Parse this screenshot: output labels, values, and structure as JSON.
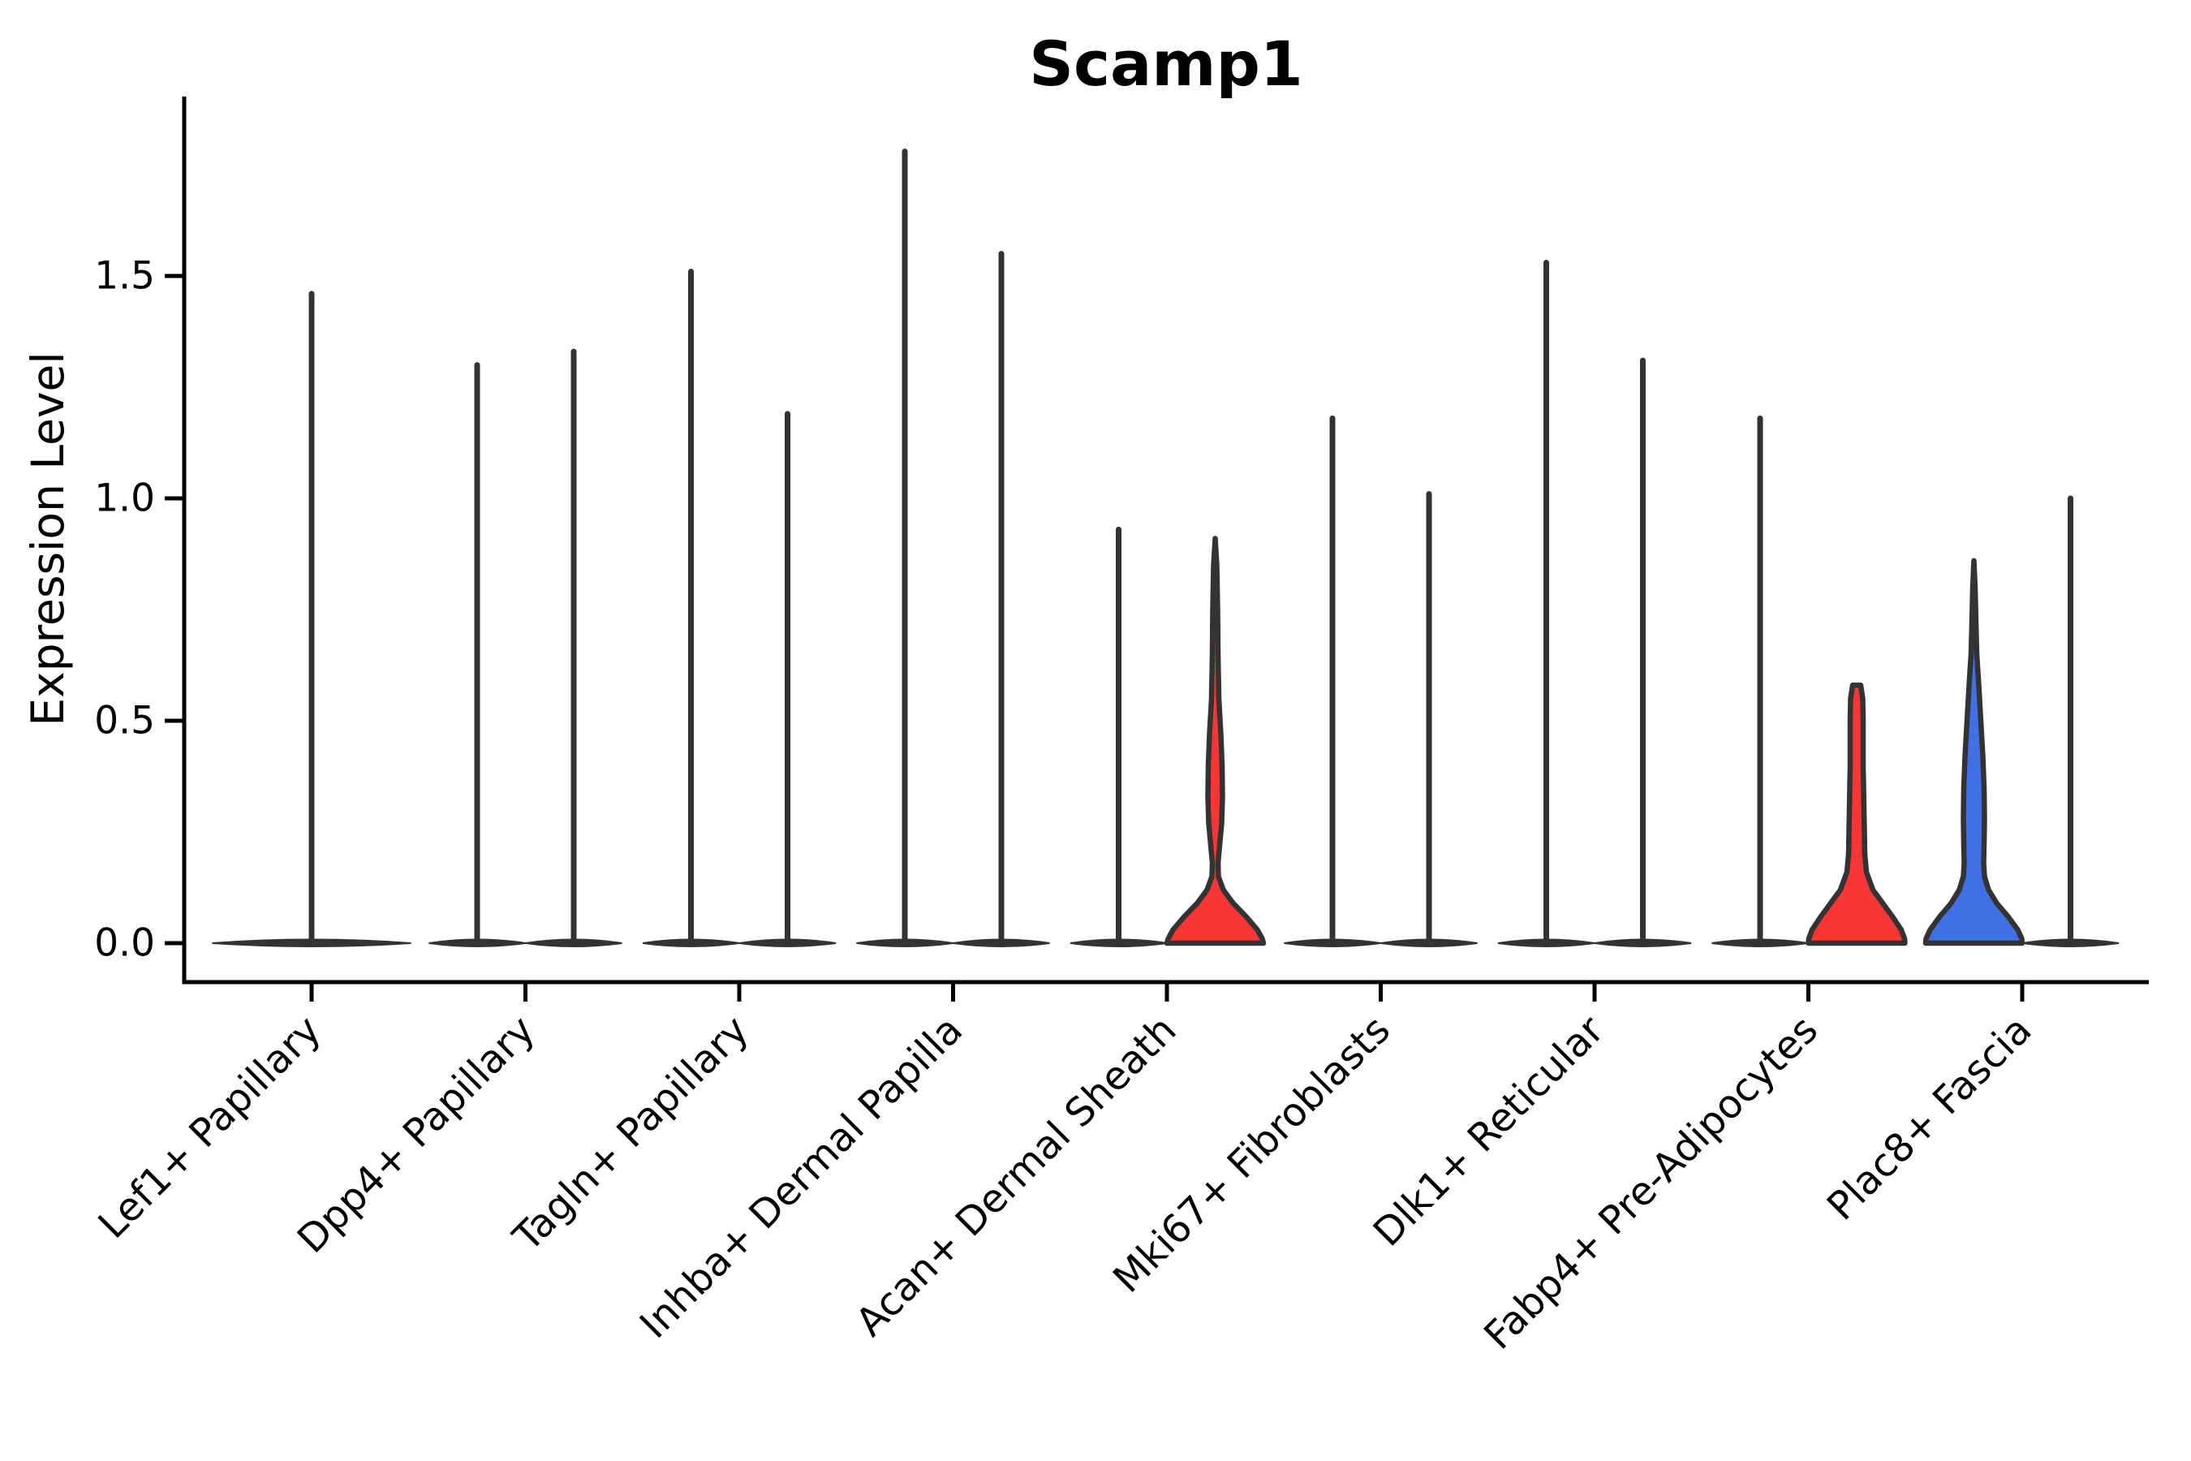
{
  "title": "Scamp1",
  "chart_data": {
    "type": "violin",
    "title": "Scamp1",
    "xlabel": "",
    "ylabel": "Expression Level",
    "ylim": [
      0,
      1.9
    ],
    "yticks": [
      {
        "value": 0.0,
        "label": "0.0"
      },
      {
        "value": 0.5,
        "label": "0.5"
      },
      {
        "value": 1.0,
        "label": "1.0"
      },
      {
        "value": 1.5,
        "label": "1.5"
      }
    ],
    "grid": false,
    "legend": "none",
    "colors": {
      "red_fill": "#f93636",
      "blue_fill": "#4170e4",
      "violin_outline": "#333333",
      "axis": "#000000"
    },
    "note": "Split violin plot, 2 groups per cell type; most violins collapse to a spike at 0 (zero-inflated expression). 'max' is the top of each violin in expression units.",
    "categories": [
      {
        "label": "Lef1+ Papillary",
        "violins": [
          {
            "position": "center",
            "style": "spike",
            "color": "gray",
            "max": 1.46
          }
        ]
      },
      {
        "label": "Dpp4+ Papillary",
        "violins": [
          {
            "position": "left",
            "style": "spike",
            "color": "gray",
            "max": 1.3
          },
          {
            "position": "right",
            "style": "spike",
            "color": "gray",
            "max": 1.33
          }
        ]
      },
      {
        "label": "Tagln+ Papillary",
        "violins": [
          {
            "position": "left",
            "style": "spike",
            "color": "gray",
            "max": 1.51
          },
          {
            "position": "right",
            "style": "spike",
            "color": "gray",
            "max": 1.19
          }
        ]
      },
      {
        "label": "Inhba+ Dermal Papilla",
        "violins": [
          {
            "position": "left",
            "style": "spike",
            "color": "gray",
            "max": 1.78
          },
          {
            "position": "right",
            "style": "spike",
            "color": "gray",
            "max": 1.55
          }
        ]
      },
      {
        "label": "Acan+ Dermal Sheath",
        "violins": [
          {
            "position": "left",
            "style": "spike",
            "color": "gray",
            "max": 0.93
          },
          {
            "position": "right",
            "style": "shaped",
            "color": "red",
            "max": 0.91,
            "profile": [
              [
                0.91,
                0
              ],
              [
                0.85,
                2
              ],
              [
                0.75,
                3
              ],
              [
                0.65,
                3.5
              ],
              [
                0.55,
                4.5
              ],
              [
                0.47,
                7
              ],
              [
                0.4,
                8.5
              ],
              [
                0.33,
                9
              ],
              [
                0.27,
                8
              ],
              [
                0.22,
                5.5
              ],
              [
                0.18,
                3.5
              ],
              [
                0.15,
                4
              ],
              [
                0.12,
                10
              ],
              [
                0.09,
                22
              ],
              [
                0.06,
                38
              ],
              [
                0.03,
                52
              ],
              [
                0.01,
                58
              ],
              [
                0,
                59.5
              ]
            ]
          }
        ]
      },
      {
        "label": "Mki67+ Fibroblasts",
        "violins": [
          {
            "position": "left",
            "style": "spike",
            "color": "gray",
            "max": 1.18
          },
          {
            "position": "right",
            "style": "spike",
            "color": "gray",
            "max": 1.01
          }
        ]
      },
      {
        "label": "Dlk1+ Reticular",
        "violins": [
          {
            "position": "left",
            "style": "spike",
            "color": "gray",
            "max": 1.53
          },
          {
            "position": "right",
            "style": "spike",
            "color": "gray",
            "max": 1.31
          }
        ]
      },
      {
        "label": "Fabp4+ Pre-Adipocytes",
        "violins": [
          {
            "position": "left",
            "style": "spike",
            "color": "gray",
            "max": 1.18
          },
          {
            "position": "right",
            "style": "shaped",
            "color": "red",
            "max": 0.58,
            "profile": [
              [
                0.58,
                5
              ],
              [
                0.55,
                7.5
              ],
              [
                0.5,
                8
              ],
              [
                0.45,
                8
              ],
              [
                0.4,
                8
              ],
              [
                0.35,
                8.5
              ],
              [
                0.3,
                9
              ],
              [
                0.25,
                9.5
              ],
              [
                0.2,
                10
              ],
              [
                0.16,
                12
              ],
              [
                0.12,
                20
              ],
              [
                0.09,
                32
              ],
              [
                0.06,
                44
              ],
              [
                0.03,
                55
              ],
              [
                0.01,
                59
              ],
              [
                0,
                59.5
              ]
            ]
          }
        ]
      },
      {
        "label": "Plac8+ Fascia",
        "violins": [
          {
            "position": "left",
            "style": "shaped",
            "color": "blue",
            "max": 0.86,
            "profile": [
              [
                0.86,
                0
              ],
              [
                0.8,
                1.5
              ],
              [
                0.72,
                2.5
              ],
              [
                0.65,
                3.5
              ],
              [
                0.58,
                6
              ],
              [
                0.5,
                8.5
              ],
              [
                0.42,
                11
              ],
              [
                0.35,
                12.5
              ],
              [
                0.28,
                13
              ],
              [
                0.22,
                12.5
              ],
              [
                0.18,
                12
              ],
              [
                0.15,
                13
              ],
              [
                0.12,
                18
              ],
              [
                0.09,
                28
              ],
              [
                0.06,
                42
              ],
              [
                0.03,
                54
              ],
              [
                0.01,
                59
              ],
              [
                0,
                59.5
              ]
            ]
          },
          {
            "position": "right",
            "style": "spike",
            "color": "gray",
            "max": 1.0
          }
        ]
      }
    ]
  }
}
